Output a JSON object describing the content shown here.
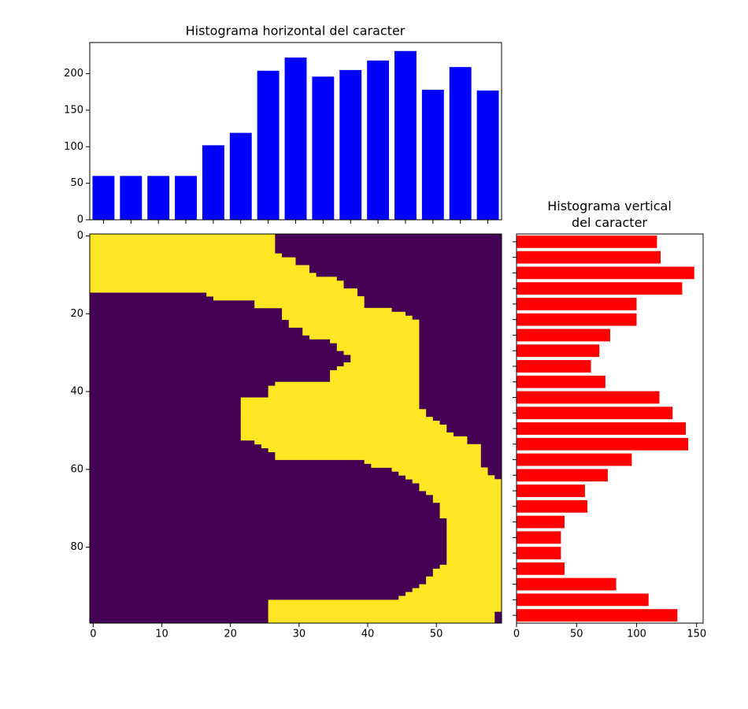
{
  "chart_data": [
    {
      "type": "bar",
      "title": "Histograma horizontal del caracter",
      "categories": [
        null,
        null,
        null,
        null,
        null,
        null,
        null,
        null,
        null,
        null,
        null,
        null,
        null,
        null,
        null
      ],
      "values": [
        60,
        60,
        60,
        60,
        102,
        119,
        204,
        222,
        196,
        205,
        218,
        231,
        178,
        209,
        177
      ],
      "color": "#0000ff",
      "ylim": [
        0,
        242.6
      ],
      "yticks": [
        0,
        50,
        100,
        150,
        200
      ]
    },
    {
      "type": "image",
      "colors": [
        "#440154",
        "#fde725"
      ],
      "xlim": [
        -0.5,
        59.5
      ],
      "ylim": [
        99.5,
        -0.5
      ],
      "xticks": [
        0,
        10,
        20,
        30,
        40,
        50
      ],
      "yticks": [
        0,
        20,
        40,
        60,
        80
      ],
      "rows": [
        [
          0,
          27
        ],
        [
          0,
          27
        ],
        [
          0,
          27
        ],
        [
          0,
          27
        ],
        [
          0,
          27
        ],
        [
          0,
          28
        ],
        [
          0,
          30
        ],
        [
          0,
          30
        ],
        [
          0,
          32
        ],
        [
          0,
          32
        ],
        [
          0,
          33
        ],
        [
          0,
          36
        ],
        [
          0,
          37
        ],
        [
          0,
          37
        ],
        [
          0,
          39
        ],
        [
          17,
          39
        ],
        [
          18,
          40
        ],
        [
          24,
          40
        ],
        [
          24,
          40
        ],
        [
          28,
          44
        ],
        [
          28,
          46
        ],
        [
          28,
          47
        ],
        [
          29,
          48
        ],
        [
          29,
          48
        ],
        [
          31,
          48
        ],
        [
          31,
          48
        ],
        [
          32,
          48
        ],
        [
          35,
          48
        ],
        [
          36,
          48
        ],
        [
          36,
          48
        ],
        [
          37,
          48
        ],
        [
          38,
          48
        ],
        [
          38,
          48
        ],
        [
          37,
          48
        ],
        [
          36,
          48
        ],
        [
          35,
          48
        ],
        [
          35,
          48
        ],
        [
          35,
          48
        ],
        [
          27,
          48
        ],
        [
          26,
          48
        ],
        [
          26,
          48
        ],
        [
          26,
          48
        ],
        [
          22,
          48
        ],
        [
          22,
          48
        ],
        [
          22,
          48
        ],
        [
          22,
          49
        ],
        [
          22,
          49
        ],
        [
          22,
          50
        ],
        [
          22,
          51
        ],
        [
          22,
          52
        ],
        [
          22,
          52
        ],
        [
          22,
          53
        ],
        [
          22,
          55
        ],
        [
          24,
          55
        ],
        [
          25,
          57
        ],
        [
          26,
          57
        ],
        [
          27,
          57
        ],
        [
          27,
          57
        ],
        [
          40,
          57
        ],
        [
          41,
          57
        ],
        [
          44,
          58
        ],
        [
          45,
          58
        ],
        [
          46,
          59
        ],
        [
          47,
          60
        ],
        [
          48,
          60
        ],
        [
          48,
          60
        ],
        [
          49,
          60
        ],
        [
          50,
          60
        ],
        [
          50,
          60
        ],
        [
          51,
          60
        ],
        [
          51,
          60
        ],
        [
          51,
          60
        ],
        [
          51,
          60
        ],
        [
          52,
          60
        ],
        [
          52,
          60
        ],
        [
          52,
          60
        ],
        [
          52,
          60
        ],
        [
          52,
          60
        ],
        [
          52,
          60
        ],
        [
          52,
          60
        ],
        [
          52,
          60
        ],
        [
          52,
          60
        ],
        [
          52,
          60
        ],
        [
          52,
          60
        ],
        [
          52,
          60
        ],
        [
          51,
          60
        ],
        [
          50,
          60
        ],
        [
          50,
          60
        ],
        [
          49,
          60
        ],
        [
          49,
          60
        ],
        [
          48,
          60
        ],
        [
          47,
          60
        ],
        [
          46,
          60
        ],
        [
          45,
          60
        ],
        [
          26,
          60
        ],
        [
          26,
          60
        ],
        [
          26,
          60
        ],
        [
          26,
          59
        ],
        [
          26,
          59
        ],
        [
          26,
          59
        ]
      ]
    },
    {
      "type": "barh",
      "title": "Histograma vertical\ndel caracter",
      "categories": [
        null,
        null,
        null,
        null,
        null,
        null,
        null,
        null,
        null,
        null,
        null,
        null,
        null,
        null,
        null,
        null,
        null,
        null,
        null,
        null,
        null,
        null,
        null,
        null,
        null
      ],
      "values": [
        117,
        120,
        148,
        138,
        100,
        100,
        78,
        69,
        62,
        74,
        119,
        130,
        141,
        143,
        96,
        76,
        57,
        59,
        40,
        37,
        37,
        40,
        83,
        110,
        134
      ],
      "color": "#ff0000",
      "xlim": [
        0,
        155.4
      ],
      "xticks": [
        0,
        50,
        100,
        150
      ]
    }
  ]
}
